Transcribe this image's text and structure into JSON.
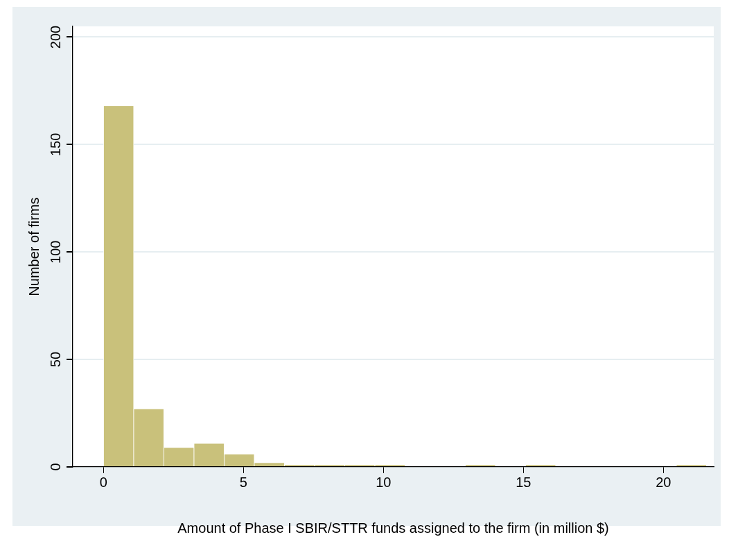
{
  "chart_data": {
    "type": "histogram",
    "xlabel": "Amount of Phase I SBIR/STTR funds assigned to the firm (in million $)",
    "ylabel": "Number of firms",
    "bins": [
      0,
      1.077,
      2.154,
      3.231,
      4.308,
      5.385,
      6.462,
      7.539,
      8.616,
      9.693,
      10.77,
      11.847,
      12.924,
      14.001,
      15.078,
      16.155,
      17.232,
      18.309,
      19.386,
      20.463,
      21.54
    ],
    "values": [
      168,
      27,
      9,
      11,
      6,
      2,
      1,
      1,
      1,
      1,
      0,
      0,
      1,
      0,
      1,
      0,
      0,
      0,
      0,
      1
    ],
    "color": "#c9c17b",
    "xlim": [
      -1.1,
      21.8
    ],
    "xticks": [
      0,
      5,
      10,
      15,
      20
    ],
    "ylim": [
      0,
      205
    ],
    "yticks": [
      0,
      50,
      100,
      150,
      200
    ],
    "grid": "y",
    "legend": false
  }
}
